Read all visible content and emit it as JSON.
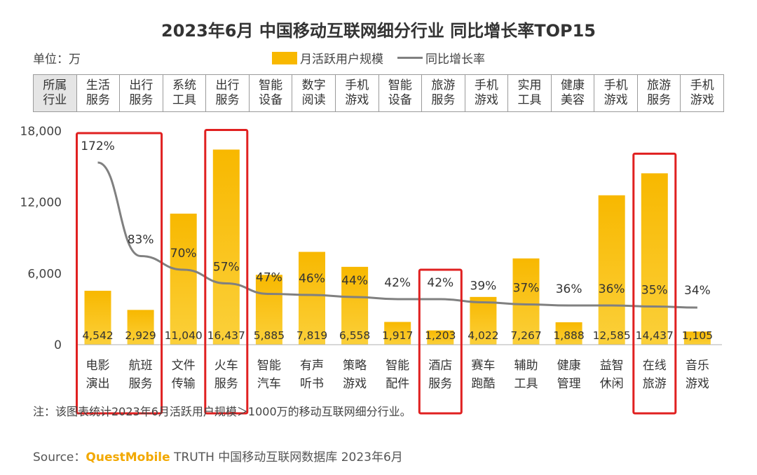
{
  "title": "2023年6月 中国移动互联网细分行业 同比增长率TOP15",
  "unit_label": "单位：万",
  "legend": {
    "bars": "月活跃用户规模",
    "line": "同比增长率"
  },
  "industry_header": "所属行业",
  "note": "注：该图表统计2023年6月活跃用户规模＞1000万的移动互联网细分行业。",
  "source": {
    "prefix": "Source：",
    "brand": "QuestMobile",
    "suffix": " TRUTH 中国移动互联网数据库 2023年6月"
  },
  "colors": {
    "bar": "#F8B800",
    "bar_light": "#FBD03A",
    "line": "#808080",
    "highlight": "#E02020"
  },
  "chart_data": {
    "type": "bar",
    "categories": [
      "电影演出",
      "航班服务",
      "文件传输",
      "火车服务",
      "智能汽车",
      "有声听书",
      "策略游戏",
      "智能配件",
      "酒店服务",
      "赛车跑酷",
      "辅助工具",
      "健康管理",
      "益智休闲",
      "在线旅游",
      "音乐游戏"
    ],
    "industries": [
      "生活服务",
      "出行服务",
      "系统工具",
      "出行服务",
      "智能设备",
      "数字阅读",
      "手机游戏",
      "智能设备",
      "旅游服务",
      "手机游戏",
      "实用工具",
      "健康美容",
      "手机游戏",
      "旅游服务",
      "手机游戏"
    ],
    "series": [
      {
        "name": "月活跃用户规模",
        "type": "bar",
        "values": [
          4542,
          2929,
          11040,
          16437,
          5885,
          7819,
          6558,
          1917,
          1203,
          4022,
          7267,
          1888,
          12585,
          14437,
          1105
        ],
        "labels": [
          "4,542",
          "2,929",
          "11,040",
          "16,437",
          "5,885",
          "7,819",
          "6,558",
          "1,917",
          "1,203",
          "4,022",
          "7,267",
          "1,888",
          "12,585",
          "14,437",
          "1,105"
        ]
      },
      {
        "name": "同比增长率",
        "type": "line",
        "values": [
          172,
          83,
          70,
          57,
          47,
          46,
          44,
          42,
          42,
          39,
          37,
          36,
          36,
          35,
          34
        ],
        "labels": [
          "172%",
          "83%",
          "70%",
          "57%",
          "47%",
          "46%",
          "44%",
          "42%",
          "42%",
          "39%",
          "37%",
          "36%",
          "36%",
          "35%",
          "34%"
        ]
      }
    ],
    "y_ticks": [
      "18,000",
      "12,000",
      "6,000",
      "0"
    ],
    "y_tick_values": [
      18000,
      12000,
      6000,
      0
    ],
    "ylim": [
      0,
      18000
    ],
    "highlighted": [
      "电影演出",
      "航班服务",
      "火车服务",
      "酒店服务",
      "在线旅游"
    ],
    "grid": false,
    "legend_position": "top-center"
  }
}
